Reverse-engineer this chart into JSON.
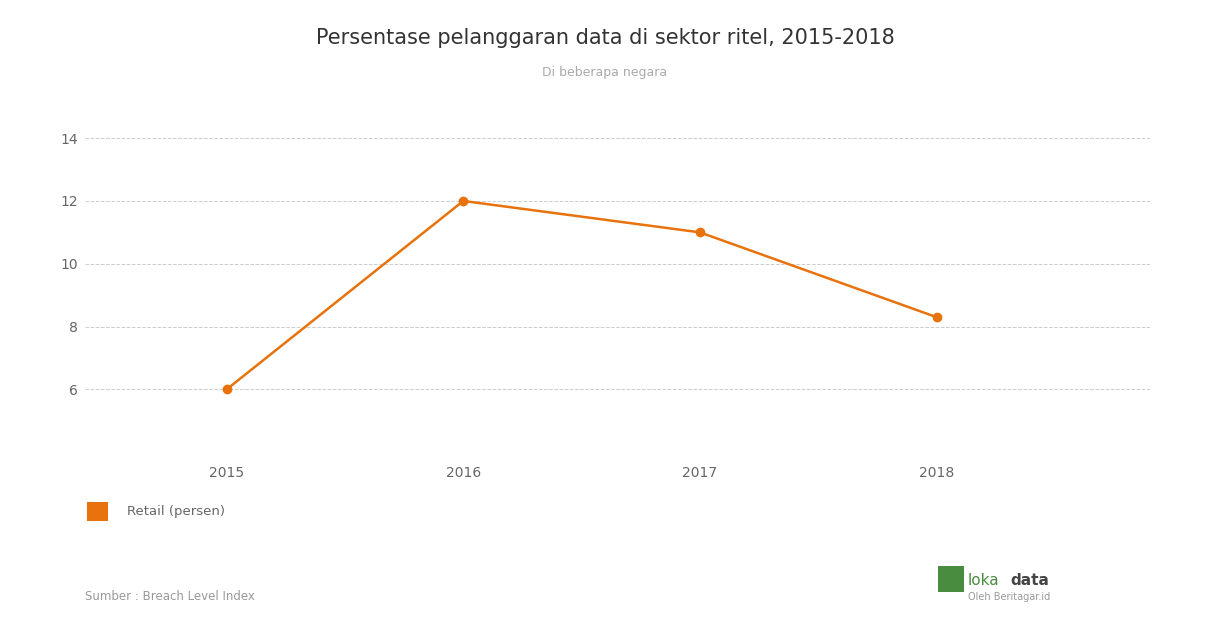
{
  "title": "Persentase pelanggaran data di sektor ritel, 2015-2018",
  "subtitle": "Di beberapa negara",
  "years": [
    2015,
    2016,
    2017,
    2018
  ],
  "values": [
    6,
    12,
    11,
    8.3
  ],
  "line_color": "#E8720C",
  "marker_color": "#E8720C",
  "background_color": "#ffffff",
  "grid_color": "#cccccc",
  "title_fontsize": 15,
  "subtitle_fontsize": 9,
  "tick_fontsize": 10,
  "ylim": [
    4,
    15
  ],
  "yticks": [
    6,
    8,
    10,
    12,
    14
  ],
  "legend_label": "Retail (persen)",
  "source_text": "Sumber : Breach Level Index",
  "source_fontsize": 8.5,
  "axis_text_color": "#666666",
  "source_text_color": "#999999",
  "loka_green": "#4a8c3f",
  "loka_dark": "#444444",
  "loka_sub": "#999999"
}
